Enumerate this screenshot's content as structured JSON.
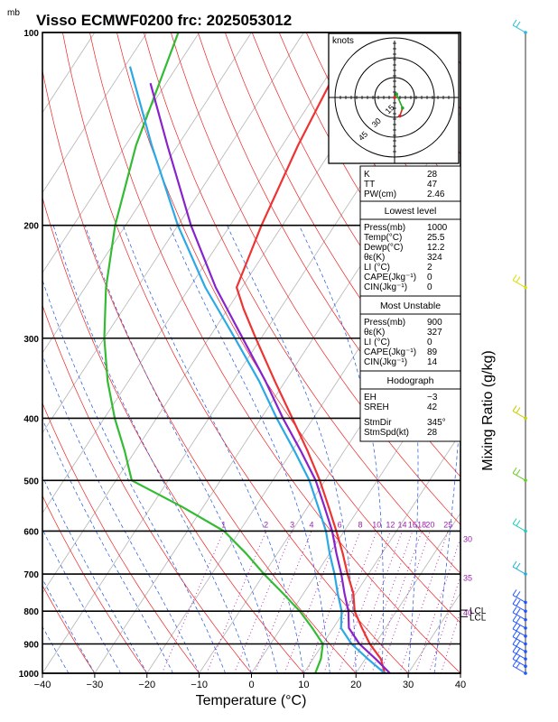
{
  "chart_data": {
    "type": "line",
    "title": "Visso ECMWF0200  frc: 2025053012",
    "pressure_unit": "mb",
    "xlabel": "Temperature (°C)",
    "ylabel_right": "Mixing Ratio (g/kg)",
    "xlim": [
      -40,
      40
    ],
    "ylim_pressure": [
      1000,
      100
    ],
    "log_pressure": true,
    "skew_deg_per_decade": 80,
    "grid": true,
    "x_ticks": [
      "−40",
      "−30",
      "−20",
      "−10",
      "0",
      "10",
      "20",
      "30",
      "40"
    ],
    "pressure_ticks": [
      {
        "p": 100,
        "label": "100"
      },
      {
        "p": 200,
        "label": "200"
      },
      {
        "p": 300,
        "label": "300"
      },
      {
        "p": 400,
        "label": "400"
      },
      {
        "p": 500,
        "label": "500"
      },
      {
        "p": 600,
        "label": "600"
      },
      {
        "p": 700,
        "label": "700"
      },
      {
        "p": 800,
        "label": "800"
      },
      {
        "p": 900,
        "label": "900"
      },
      {
        "p": 1000,
        "label": "1000"
      }
    ],
    "mixing_ratio_labels": [
      {
        "w": 1,
        "label": "1"
      },
      {
        "w": 2,
        "label": "2"
      },
      {
        "w": 3,
        "label": "3"
      },
      {
        "w": 4,
        "label": "4"
      },
      {
        "w": 6,
        "label": "6"
      },
      {
        "w": 8,
        "label": "8"
      },
      {
        "w": 10,
        "label": "10"
      },
      {
        "w": 12,
        "label": "12"
      },
      {
        "w": 14,
        "label": "14"
      },
      {
        "w": 16,
        "label": "16"
      },
      {
        "w": 18,
        "label": "18"
      },
      {
        "w": 20,
        "label": "20"
      },
      {
        "w": 25,
        "label": "25"
      },
      {
        "w": 30,
        "label": "30"
      },
      {
        "w": 35,
        "label": "35"
      },
      {
        "w": 40,
        "label": "40"
      }
    ],
    "lcl_labels": [
      {
        "p": 797,
        "label": "LCL"
      },
      {
        "p": 816,
        "label": "LCL"
      }
    ],
    "series": [
      {
        "name": "Temperature",
        "color": "#ee3333",
        "points": [
          {
            "p": 1000,
            "t": 25.5
          },
          {
            "p": 950,
            "t": 23.0
          },
          {
            "p": 900,
            "t": 19.0
          },
          {
            "p": 850,
            "t": 15.5
          },
          {
            "p": 800,
            "t": 12.0
          },
          {
            "p": 750,
            "t": 9.5
          },
          {
            "p": 700,
            "t": 6.0
          },
          {
            "p": 650,
            "t": 2.5
          },
          {
            "p": 600,
            "t": -1.5
          },
          {
            "p": 550,
            "t": -6.0
          },
          {
            "p": 500,
            "t": -11.0
          },
          {
            "p": 450,
            "t": -17.0
          },
          {
            "p": 400,
            "t": -24.0
          },
          {
            "p": 350,
            "t": -32.0
          },
          {
            "p": 300,
            "t": -41.0
          },
          {
            "p": 270,
            "t": -47.0
          },
          {
            "p": 250,
            "t": -51.0
          },
          {
            "p": 200,
            "t": -54.0
          },
          {
            "p": 150,
            "t": -57.0
          },
          {
            "p": 100,
            "t": -60.0
          }
        ]
      },
      {
        "name": "Dewpoint",
        "color": "#33bb33",
        "points": [
          {
            "p": 1000,
            "t": 12.2
          },
          {
            "p": 950,
            "t": 11.5
          },
          {
            "p": 900,
            "t": 10.0
          },
          {
            "p": 850,
            "t": 6.0
          },
          {
            "p": 800,
            "t": 1.5
          },
          {
            "p": 750,
            "t": -4.0
          },
          {
            "p": 700,
            "t": -10.0
          },
          {
            "p": 650,
            "t": -16.0
          },
          {
            "p": 600,
            "t": -23.0
          },
          {
            "p": 550,
            "t": -34.0
          },
          {
            "p": 500,
            "t": -47.0
          },
          {
            "p": 450,
            "t": -52.0
          },
          {
            "p": 400,
            "t": -58.0
          },
          {
            "p": 350,
            "t": -64.0
          },
          {
            "p": 300,
            "t": -70.0
          },
          {
            "p": 250,
            "t": -76.0
          },
          {
            "p": 200,
            "t": -82.0
          },
          {
            "p": 150,
            "t": -88.0
          },
          {
            "p": 100,
            "t": -94.0
          }
        ]
      },
      {
        "name": "Parcel",
        "color": "#2aa9e6",
        "points": [
          {
            "p": 1000,
            "t": 25.5
          },
          {
            "p": 950,
            "t": 20.5
          },
          {
            "p": 900,
            "t": 15.5
          },
          {
            "p": 850,
            "t": 11.5
          },
          {
            "p": 800,
            "t": 9.5
          },
          {
            "p": 750,
            "t": 6.5
          },
          {
            "p": 700,
            "t": 3.5
          },
          {
            "p": 650,
            "t": 0.0
          },
          {
            "p": 600,
            "t": -3.5
          },
          {
            "p": 550,
            "t": -8.0
          },
          {
            "p": 500,
            "t": -13.0
          },
          {
            "p": 450,
            "t": -19.5
          },
          {
            "p": 400,
            "t": -27.0
          },
          {
            "p": 350,
            "t": -35.0
          },
          {
            "p": 300,
            "t": -45.0
          },
          {
            "p": 250,
            "t": -57.0
          },
          {
            "p": 200,
            "t": -70.0
          },
          {
            "p": 150,
            "t": -85.0
          },
          {
            "p": 113,
            "t": -99.0
          }
        ]
      },
      {
        "name": "Virtual temperature parcel",
        "color": "#8822cc",
        "points": [
          {
            "p": 1000,
            "t": 26.5
          },
          {
            "p": 950,
            "t": 22.0
          },
          {
            "p": 900,
            "t": 17.0
          },
          {
            "p": 850,
            "t": 13.0
          },
          {
            "p": 800,
            "t": 10.8
          },
          {
            "p": 750,
            "t": 7.8
          },
          {
            "p": 700,
            "t": 4.8
          },
          {
            "p": 650,
            "t": 1.3
          },
          {
            "p": 600,
            "t": -2.3
          },
          {
            "p": 550,
            "t": -6.8
          },
          {
            "p": 500,
            "t": -11.8
          },
          {
            "p": 450,
            "t": -18.3
          },
          {
            "p": 400,
            "t": -25.8
          },
          {
            "p": 350,
            "t": -33.8
          },
          {
            "p": 300,
            "t": -43.5
          },
          {
            "p": 250,
            "t": -55.0
          },
          {
            "p": 200,
            "t": -67.5
          },
          {
            "p": 150,
            "t": -82.0
          },
          {
            "p": 120,
            "t": -93.0
          }
        ]
      }
    ],
    "wind_barbs": [
      {
        "p": 1000,
        "color": "#2255ff"
      },
      {
        "p": 975,
        "color": "#2255ff"
      },
      {
        "p": 950,
        "color": "#2255ff"
      },
      {
        "p": 925,
        "color": "#2255ff"
      },
      {
        "p": 900,
        "color": "#2255ff"
      },
      {
        "p": 875,
        "color": "#2255ff"
      },
      {
        "p": 850,
        "color": "#2255ff"
      },
      {
        "p": 825,
        "color": "#2255ff"
      },
      {
        "p": 800,
        "color": "#2255ff"
      },
      {
        "p": 775,
        "color": "#2255ff"
      },
      {
        "p": 700,
        "color": "#22aadd"
      },
      {
        "p": 600,
        "color": "#22ccbb"
      },
      {
        "p": 500,
        "color": "#66cc22"
      },
      {
        "p": 400,
        "color": "#cccc00"
      },
      {
        "p": 250,
        "color": "#dddd00"
      },
      {
        "p": 100,
        "color": "#22bbdd"
      }
    ],
    "hodograph": {
      "unit_label": "knots",
      "ring_labels": [
        "15",
        "30",
        "45"
      ],
      "points": [
        {
          "u": 0,
          "v": 0,
          "color": "#dd2222"
        },
        {
          "u": 1.5,
          "v": 2.5,
          "color": "#22aa22"
        },
        {
          "u": 6,
          "v": -8,
          "color": "#22aa22"
        },
        {
          "u": 4,
          "v": -14,
          "color": "#dd2222"
        }
      ]
    },
    "indices": {
      "top": [
        {
          "label": "K",
          "value": "28"
        },
        {
          "label": "TT",
          "value": "47"
        },
        {
          "label": "PW(cm)",
          "value": "2.46"
        }
      ],
      "lowest_level": {
        "heading": "Lowest level",
        "rows": [
          {
            "label": "Press(mb)",
            "value": "1000"
          },
          {
            "label": "Temp(°C)",
            "value": "25.5"
          },
          {
            "label": "Dewp(°C)",
            "value": "12.2"
          },
          {
            "label": "θε(K)",
            "value": "324"
          },
          {
            "label": "LI (°C)",
            "value": "2"
          },
          {
            "label": "CAPE(Jkg⁻¹)",
            "value": "0"
          },
          {
            "label": "CIN(Jkg⁻¹)",
            "value": "0"
          }
        ]
      },
      "most_unstable": {
        "heading": "Most Unstable",
        "rows": [
          {
            "label": "Press(mb)",
            "value": "900"
          },
          {
            "label": "θε(K)",
            "value": "327"
          },
          {
            "label": "LI (°C)",
            "value": "0"
          },
          {
            "label": "CAPE(Jkg⁻¹)",
            "value": "89"
          },
          {
            "label": "CIN(Jkg⁻¹)",
            "value": "14"
          }
        ]
      },
      "hodograph_block": {
        "heading": "Hodograph",
        "rows": [
          {
            "label": "EH",
            "value": "−3"
          },
          {
            "label": "SREH",
            "value": "42"
          },
          {
            "label": "StmDir",
            "value": "345°"
          },
          {
            "label": "StmSpd(kt)",
            "value": "28"
          }
        ]
      }
    }
  }
}
